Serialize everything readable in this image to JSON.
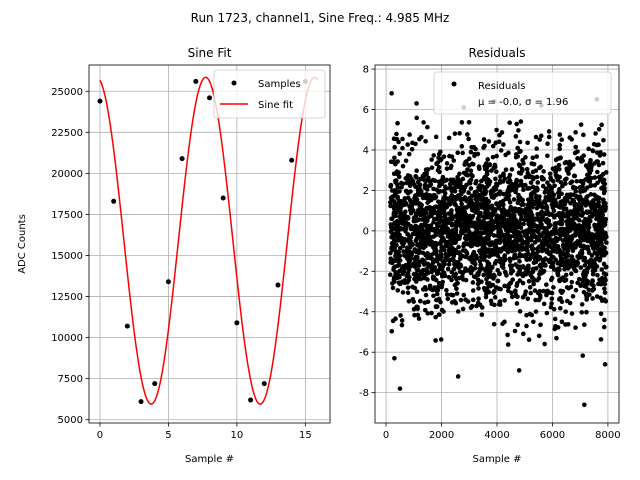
{
  "figure": {
    "suptitle": "Run 1723, channel1, Sine Freq.: 4.985 MHz"
  },
  "chart_data": [
    {
      "type": "scatter",
      "title": "Sine Fit",
      "xlabel": "Sample #",
      "ylabel": "ADC Counts",
      "xlim": [
        -0.8,
        16.8
      ],
      "ylim": [
        4800,
        26600
      ],
      "grid": true,
      "x_ticks": [
        0,
        5,
        10,
        15
      ],
      "y_ticks": [
        5000,
        7500,
        10000,
        12500,
        15000,
        17500,
        20000,
        22500,
        25000
      ],
      "legend": {
        "placement": "top-right",
        "entries": [
          "Samples",
          "Sine fit"
        ]
      },
      "series": [
        {
          "name": "Samples",
          "marker": "point",
          "color": "#000000",
          "x": [
            0,
            1,
            2,
            3,
            4,
            5,
            6,
            7,
            8,
            9,
            10,
            11,
            12,
            13,
            14,
            15
          ],
          "y": [
            24400,
            18300,
            10700,
            6100,
            7200,
            13400,
            20900,
            25600,
            24600,
            18500,
            10900,
            6200,
            7200,
            13200,
            20800,
            25600
          ]
        },
        {
          "name": "Sine fit",
          "type": "line",
          "color": "#ff0000",
          "model": {
            "amplitude": 9950,
            "offset": 15900,
            "period": 7.96,
            "phase_rad": 1.76
          },
          "x_range": [
            0,
            15.9
          ]
        }
      ]
    },
    {
      "type": "scatter",
      "title": "Residuals",
      "xlabel": "Sample #",
      "ylabel": "",
      "xlim": [
        -400,
        8400
      ],
      "ylim": [
        -9.5,
        8.2
      ],
      "grid": true,
      "x_ticks": [
        0,
        2000,
        4000,
        6000,
        8000
      ],
      "y_ticks": [
        -8,
        -6,
        -4,
        -2,
        0,
        2,
        4,
        6,
        8
      ],
      "legend": {
        "placement": "top-right",
        "entries": [
          "Residuals",
          "μ = -0.0, σ = 1.96"
        ]
      },
      "series": [
        {
          "name": "Residuals",
          "marker": "point",
          "color": "#000000",
          "n_points": 8000,
          "x_range": [
            0,
            8000
          ],
          "mean": -0.0,
          "sigma": 1.96,
          "notable_points": [
            {
              "x": 200,
              "y": 6.8
            },
            {
              "x": 1100,
              "y": 6.3
            },
            {
              "x": 2800,
              "y": 6.1
            },
            {
              "x": 3900,
              "y": 6.4
            },
            {
              "x": 5600,
              "y": 6.2
            },
            {
              "x": 7600,
              "y": 6.5
            },
            {
              "x": 500,
              "y": -7.8
            },
            {
              "x": 2600,
              "y": -7.2
            },
            {
              "x": 7150,
              "y": -8.6
            },
            {
              "x": 4800,
              "y": -6.9
            },
            {
              "x": 7900,
              "y": -6.6
            },
            {
              "x": 300,
              "y": -6.3
            }
          ]
        }
      ]
    }
  ]
}
